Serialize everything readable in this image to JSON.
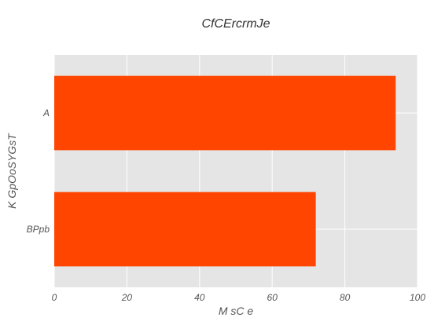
{
  "chart_data": {
    "type": "bar",
    "orientation": "horizontal",
    "title": "CfCErcrmJe",
    "xlabel": "M sC e",
    "ylabel": "K GpOoSYGsT",
    "categories": [
      "A",
      "BPpb"
    ],
    "values": [
      94,
      72
    ],
    "xlim": [
      0,
      100
    ],
    "xticks": [
      0,
      20,
      40,
      60,
      80,
      100
    ],
    "grid": true,
    "legend": "none",
    "colors": {
      "bar": "#ff4500",
      "plot_bg": "#e5e5e5",
      "grid": "#ffffff"
    }
  }
}
